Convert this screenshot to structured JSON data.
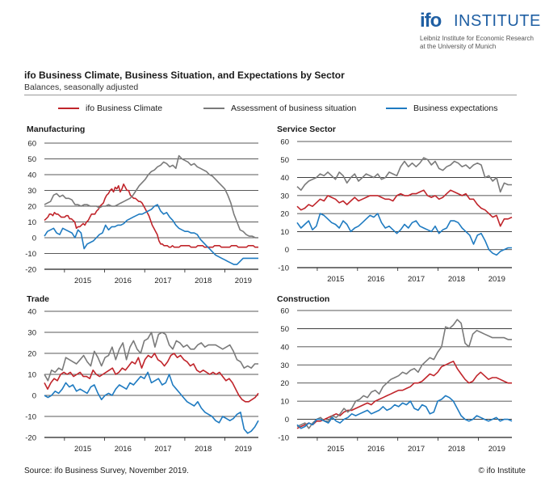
{
  "header": {
    "logo_mark": "ifo",
    "logo_word": "INSTITUTE",
    "logo_sub_1": "Leibniz Institute for Economic Research",
    "logo_sub_2": "at the University of Munich",
    "title": "ifo Business Climate, Business Situation, and Expectations by Sector",
    "subtitle": "Balances, seasonally adjusted"
  },
  "legend": [
    {
      "name": "ifo Business Climate",
      "color": "#c0252b"
    },
    {
      "name": "Assessment of business situation",
      "color": "#7a7a7a"
    },
    {
      "name": "Business expectations",
      "color": "#1f7bc1"
    }
  ],
  "footer": {
    "source": "Source: ifo Business Survey, November 2019.",
    "copyright": "© ifo Institute"
  },
  "chart_data": [
    {
      "type": "line",
      "title": "Manufacturing",
      "ylim": [
        -20,
        60
      ],
      "yticks": [
        -20,
        -10,
        0,
        10,
        20,
        30,
        40,
        50,
        60
      ],
      "x_labels": [
        "2015",
        "2016",
        "2017",
        "2018",
        "2019"
      ],
      "x_start": "2014-07",
      "x_end": "2019-11",
      "series": [
        {
          "name": "ifo Business Climate",
          "values": [
            11,
            12,
            13,
            15,
            15,
            14,
            16,
            15,
            15,
            14,
            13,
            13,
            13,
            14,
            14,
            12,
            12,
            11,
            10,
            6,
            7,
            7,
            8,
            9,
            8,
            10,
            11,
            13,
            15,
            15,
            15,
            17,
            18,
            20,
            21,
            22,
            25,
            27,
            28,
            30,
            31,
            29,
            32,
            31,
            33,
            29,
            31,
            34,
            32,
            30,
            30,
            27,
            26,
            25,
            25,
            24,
            23,
            23,
            22,
            20,
            18,
            16,
            14,
            11,
            8,
            6,
            4,
            2,
            -2,
            -4,
            -4,
            -5,
            -5,
            -5,
            -6,
            -6,
            -5,
            -6,
            -6,
            -6,
            -6,
            -5,
            -5,
            -5,
            -5,
            -5,
            -5,
            -6,
            -6,
            -6,
            -6,
            -5,
            -5,
            -5,
            -5,
            -6,
            -6,
            -6,
            -6,
            -6,
            -6,
            -5,
            -5,
            -5,
            -5,
            -6,
            -6,
            -6,
            -6,
            -6,
            -6,
            -5,
            -5,
            -5,
            -5,
            -6,
            -6,
            -6,
            -6,
            -6,
            -6,
            -5,
            -5,
            -5,
            -5,
            -6,
            -6,
            -6
          ]
        },
        {
          "name": "Assessment of business situation",
          "values": [
            21,
            22,
            23,
            27,
            28,
            26,
            27,
            25,
            25,
            24,
            21,
            21,
            20,
            21,
            21,
            20,
            20,
            20,
            19,
            20,
            20,
            21,
            20,
            20,
            21,
            22,
            23,
            24,
            25,
            27,
            30,
            33,
            35,
            37,
            40,
            42,
            43,
            45,
            46,
            48,
            47,
            45,
            46,
            44,
            52,
            50,
            49,
            48,
            46,
            47,
            45,
            44,
            43,
            42,
            40,
            39,
            37,
            35,
            33,
            31,
            27,
            22,
            15,
            10,
            5,
            4,
            2,
            1,
            1,
            0,
            0
          ]
        },
        {
          "name": "Business expectations",
          "values": [
            1,
            4,
            5,
            6,
            3,
            2,
            6,
            5,
            4,
            3,
            0,
            5,
            3,
            -7,
            -4,
            -3,
            -2,
            0,
            2,
            3,
            8,
            5,
            7,
            7,
            8,
            8,
            9,
            11,
            12,
            13,
            14,
            15,
            15,
            16,
            17,
            18,
            20,
            21,
            17,
            15,
            16,
            13,
            11,
            8,
            6,
            5,
            4,
            4,
            3,
            3,
            2,
            -1,
            -3,
            -5,
            -7,
            -9,
            -11,
            -12,
            -13,
            -14,
            -15,
            -16,
            -17,
            -17,
            -15,
            -13,
            -13,
            -13,
            -13,
            -13,
            -13
          ]
        }
      ]
    },
    {
      "type": "line",
      "title": "Service Sector",
      "ylim": [
        -10,
        60
      ],
      "yticks": [
        -10,
        0,
        10,
        20,
        30,
        40,
        50,
        60
      ],
      "x_labels": [
        "2015",
        "2016",
        "2017",
        "2018",
        "2019"
      ],
      "x_start": "2014-07",
      "x_end": "2019-11",
      "series": [
        {
          "name": "ifo Business Climate",
          "values": [
            24,
            22,
            23,
            25,
            24,
            26,
            28,
            27,
            30,
            29,
            28,
            26,
            27,
            25,
            27,
            29,
            27,
            28,
            29,
            30,
            30,
            30,
            29,
            28,
            28,
            27,
            30,
            31,
            30,
            30,
            31,
            31,
            32,
            33,
            30,
            29,
            30,
            28,
            29,
            31,
            33,
            32,
            31,
            30,
            31,
            28,
            28,
            25,
            23,
            22,
            20,
            18,
            19,
            13,
            17,
            17,
            18
          ]
        },
        {
          "name": "Assessment of business situation",
          "values": [
            35,
            33,
            36,
            38,
            39,
            40,
            42,
            41,
            43,
            41,
            39,
            43,
            41,
            37,
            40,
            42,
            38,
            40,
            42,
            41,
            40,
            42,
            39,
            40,
            43,
            42,
            41,
            46,
            49,
            46,
            48,
            46,
            48,
            51,
            50,
            47,
            49,
            45,
            44,
            46,
            47,
            49,
            48,
            46,
            47,
            45,
            47,
            48,
            47,
            40,
            41,
            38,
            40,
            32,
            37,
            36,
            36
          ]
        },
        {
          "name": "Business expectations",
          "values": [
            15,
            12,
            14,
            16,
            11,
            13,
            20,
            19,
            17,
            15,
            14,
            12,
            16,
            14,
            10,
            12,
            13,
            15,
            17,
            19,
            18,
            20,
            15,
            12,
            13,
            11,
            9,
            11,
            14,
            12,
            15,
            16,
            13,
            12,
            11,
            10,
            13,
            9,
            11,
            12,
            16,
            16,
            15,
            12,
            10,
            8,
            3,
            8,
            9,
            5,
            0,
            -2,
            -3,
            -1,
            0,
            1,
            1
          ]
        }
      ]
    },
    {
      "type": "line",
      "title": "Trade",
      "ylim": [
        -20,
        40
      ],
      "yticks": [
        -20,
        -10,
        0,
        10,
        20,
        30,
        40
      ],
      "x_labels": [
        "2015",
        "2016",
        "2017",
        "2018",
        "2019"
      ],
      "x_start": "2014-07",
      "x_end": "2019-11",
      "series": [
        {
          "name": "ifo Business Climate",
          "values": [
            6,
            3,
            6,
            8,
            7,
            10,
            11,
            10,
            11,
            9,
            10,
            11,
            9,
            9,
            8,
            12,
            10,
            9,
            10,
            11,
            12,
            13,
            10,
            11,
            13,
            12,
            14,
            16,
            15,
            18,
            13,
            17,
            19,
            18,
            20,
            17,
            16,
            14,
            16,
            19,
            20,
            18,
            19,
            17,
            16,
            14,
            15,
            12,
            11,
            12,
            11,
            10,
            11,
            10,
            11,
            9,
            7,
            8,
            6,
            3,
            0,
            -2,
            -3,
            -3,
            -2,
            -1,
            1
          ]
        },
        {
          "name": "Assessment of business situation",
          "values": [
            10,
            7,
            12,
            11,
            13,
            12,
            18,
            17,
            16,
            15,
            17,
            19,
            16,
            14,
            21,
            18,
            14,
            18,
            19,
            23,
            17,
            22,
            25,
            17,
            23,
            26,
            22,
            20,
            26,
            27,
            30,
            23,
            29,
            30,
            29,
            24,
            22,
            26,
            25,
            23,
            24,
            22,
            22,
            24,
            25,
            23,
            24,
            24,
            24,
            23,
            22,
            23,
            24,
            21,
            17,
            16,
            13,
            14,
            13,
            15,
            15
          ]
        },
        {
          "name": "Business expectations",
          "values": [
            0,
            -1,
            0,
            2,
            1,
            3,
            6,
            4,
            5,
            2,
            3,
            2,
            1,
            4,
            5,
            1,
            -2,
            0,
            1,
            0,
            3,
            5,
            4,
            3,
            6,
            5,
            7,
            9,
            8,
            11,
            6,
            7,
            8,
            5,
            6,
            10,
            5,
            3,
            1,
            -1,
            -3,
            -4,
            -5,
            -3,
            -6,
            -8,
            -9,
            -10,
            -12,
            -13,
            -10,
            -11,
            -12,
            -11,
            -9,
            -8,
            -16,
            -18,
            -17,
            -15,
            -12
          ]
        }
      ]
    },
    {
      "type": "line",
      "title": "Construction",
      "ylim": [
        -10,
        60
      ],
      "yticks": [
        -10,
        0,
        10,
        20,
        30,
        40,
        50,
        60
      ],
      "x_labels": [
        "2015",
        "2016",
        "2017",
        "2018",
        "2019"
      ],
      "x_start": "2014-07",
      "x_end": "2019-11",
      "series": [
        {
          "name": "ifo Business Climate",
          "values": [
            -5,
            -4,
            -3,
            -2,
            -3,
            -1,
            -1,
            0,
            1,
            2,
            3,
            2,
            4,
            5,
            5,
            6,
            7,
            8,
            9,
            8,
            10,
            11,
            12,
            13,
            14,
            15,
            16,
            16,
            17,
            18,
            20,
            20,
            21,
            23,
            25,
            24,
            26,
            29,
            30,
            31,
            32,
            28,
            25,
            22,
            20,
            21,
            24,
            26,
            24,
            22,
            23,
            23,
            22,
            21,
            20,
            20
          ]
        },
        {
          "name": "Assessment of business situation",
          "values": [
            -4,
            -3,
            -2,
            -5,
            -2,
            0,
            1,
            -1,
            -1,
            2,
            1,
            3,
            6,
            4,
            6,
            10,
            11,
            13,
            12,
            15,
            16,
            14,
            18,
            20,
            22,
            23,
            24,
            26,
            25,
            27,
            28,
            26,
            30,
            32,
            34,
            33,
            37,
            40,
            51,
            50,
            52,
            55,
            53,
            42,
            40,
            47,
            49,
            48,
            47,
            46,
            45,
            45,
            45,
            45,
            44,
            44
          ]
        },
        {
          "name": "Business expectations",
          "values": [
            -3,
            -5,
            -4,
            -2,
            -3,
            0,
            0,
            -1,
            -2,
            1,
            -1,
            -2,
            0,
            1,
            3,
            2,
            3,
            4,
            5,
            3,
            4,
            5,
            7,
            5,
            6,
            8,
            7,
            9,
            8,
            10,
            6,
            5,
            8,
            7,
            3,
            4,
            10,
            11,
            13,
            12,
            10,
            6,
            2,
            0,
            -1,
            0,
            2,
            1,
            0,
            -1,
            0,
            1,
            -1,
            0,
            0,
            -1
          ]
        }
      ]
    }
  ]
}
